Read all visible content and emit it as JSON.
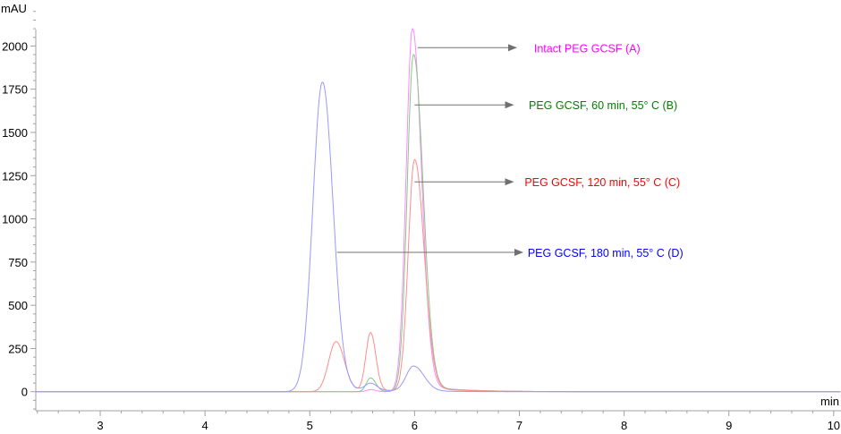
{
  "chart_data": {
    "type": "line",
    "title": "",
    "xlabel": "min",
    "ylabel": "mAU",
    "xlim": [
      2.385,
      10.07
    ],
    "ylim": [
      -110,
      2240
    ],
    "grid": false,
    "x_ticks": [
      3,
      4,
      5,
      6,
      7,
      8,
      9,
      10
    ],
    "x_tick_labels": [
      "3",
      "4",
      "5",
      "6",
      "7",
      "8",
      "9",
      "10"
    ],
    "x_minor_step": 0.2,
    "y_ticks": [
      0,
      250,
      500,
      750,
      1000,
      1250,
      1500,
      1750,
      2000
    ],
    "y_tick_labels": [
      "0",
      "250",
      "500",
      "750",
      "1000",
      "1250",
      "1500",
      "1750",
      "2000"
    ],
    "y_minor_step": 50,
    "series": [
      {
        "name": "Intact PEG GCSF (A)",
        "color": "#ff88ff",
        "peaks": [
          {
            "rt": 5.58,
            "height": 12,
            "sigma_left": 0.04,
            "sigma_right": 0.05
          },
          {
            "rt": 5.98,
            "height": 2100,
            "sigma_left": 0.06,
            "sigma_right": 0.085
          }
        ]
      },
      {
        "name": "PEG GCSF, 60 min, 55° C (B)",
        "color": "#88c888",
        "peaks": [
          {
            "rt": 5.58,
            "height": 80,
            "sigma_left": 0.04,
            "sigma_right": 0.05
          },
          {
            "rt": 5.99,
            "height": 1950,
            "sigma_left": 0.06,
            "sigma_right": 0.09
          }
        ]
      },
      {
        "name": "PEG GCSF, 120 min, 55° C (C)",
        "color": "#ff8c8c",
        "peaks": [
          {
            "rt": 5.25,
            "height": 290,
            "sigma_left": 0.07,
            "sigma_right": 0.08
          },
          {
            "rt": 5.58,
            "height": 340,
            "sigma_left": 0.045,
            "sigma_right": 0.05
          },
          {
            "rt": 6.0,
            "height": 1340,
            "sigma_left": 0.06,
            "sigma_right": 0.09
          }
        ]
      },
      {
        "name": "PEG GCSF, 180 min, 55° C (D)",
        "color": "#9999ff",
        "peaks": [
          {
            "rt": 5.12,
            "height": 1790,
            "sigma_left": 0.09,
            "sigma_right": 0.1
          },
          {
            "rt": 5.58,
            "height": 40,
            "sigma_left": 0.05,
            "sigma_right": 0.06
          },
          {
            "rt": 5.99,
            "height": 145,
            "sigma_left": 0.07,
            "sigma_right": 0.1
          }
        ]
      }
    ],
    "annotations": [
      {
        "text": "Intact PEG GCSF (A)",
        "color": "#ff00ff",
        "from": [
          6.03,
          1990
        ],
        "to": [
          6.97,
          1990
        ],
        "label_at": [
          7.14,
          1990
        ]
      },
      {
        "text": "PEG GCSF, 60 min, 55° C (B)",
        "color": "#008000",
        "from": [
          6.0,
          1659
        ],
        "to": [
          6.94,
          1659
        ],
        "label_at": [
          7.09,
          1659
        ]
      },
      {
        "text": "PEG GCSF, 120 min, 55° C (C)",
        "color": "#ff0000",
        "from": [
          6.0,
          1214
        ],
        "to": [
          6.94,
          1214
        ],
        "label_at": [
          7.05,
          1214
        ]
      },
      {
        "text": "PEG GCSF, 180 min, 55° C (D)",
        "color": "#0000ff",
        "from": [
          5.26,
          806
        ],
        "to": [
          7.03,
          806
        ],
        "label_at": [
          7.08,
          806
        ]
      }
    ],
    "arrow_color": "#707070",
    "axis_color": "#a0a0a0"
  }
}
